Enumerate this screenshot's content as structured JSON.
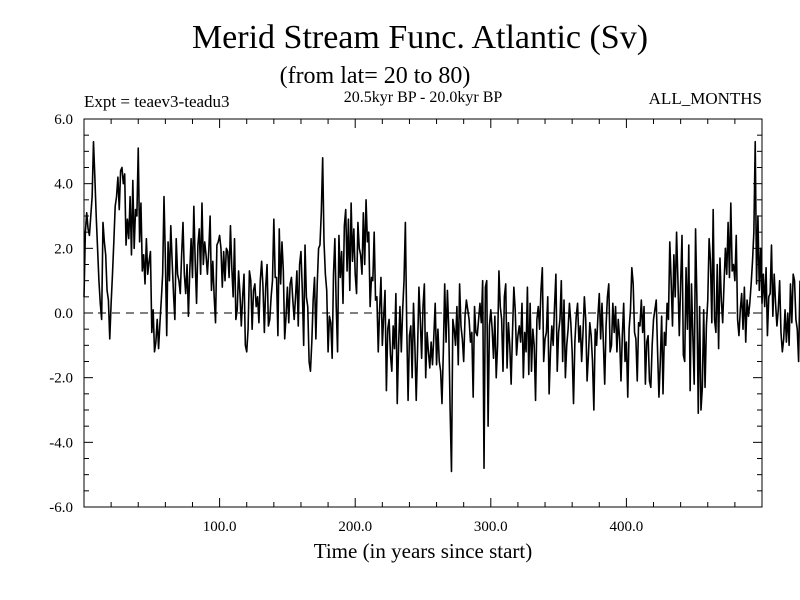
{
  "chart_data": {
    "type": "line",
    "title": "Merid Stream Func. Atlantic (Sv)",
    "subtitle": "(from lat= 20 to 80)",
    "experiment_label": "Expt = teaev3-teadu3",
    "period_label": "20.5kyr BP - 20.0kyr BP",
    "months_label": "ALL_MONTHS",
    "xlabel": "Time (in years since start)",
    "ylabel": "",
    "xlim": [
      0,
      500
    ],
    "ylim": [
      -6.0,
      6.0
    ],
    "x_ticks": [
      {
        "value": 100,
        "label": "100.0"
      },
      {
        "value": 200,
        "label": "200.0"
      },
      {
        "value": 300,
        "label": "300.0"
      },
      {
        "value": 400,
        "label": "400.0"
      }
    ],
    "y_ticks": [
      {
        "value": 6,
        "label": "6.0"
      },
      {
        "value": 4,
        "label": "4.0"
      },
      {
        "value": 2,
        "label": "2.0"
      },
      {
        "value": 0,
        "label": "0.0"
      },
      {
        "value": -2,
        "label": "-2.0"
      },
      {
        "value": -4,
        "label": "-4.0"
      },
      {
        "value": -6,
        "label": "-6.0"
      }
    ],
    "zero_line": {
      "value": 0.0,
      "style": "dashed"
    },
    "series": [
      {
        "name": "Merid Stream Func. Atlantic",
        "x_start": 0,
        "x_step": 1,
        "values": [
          0.5,
          2.5,
          3.1,
          2.6,
          2.4,
          3.0,
          3.6,
          5.3,
          4.2,
          3.0,
          2.0,
          1.0,
          0.3,
          -0.2,
          2.8,
          2.2,
          1.8,
          0.7,
          0.4,
          -0.8,
          0.3,
          1.2,
          2.2,
          3.3,
          3.6,
          4.2,
          3.2,
          4.4,
          4.5,
          4.0,
          4.3,
          2.1,
          2.9,
          2.3,
          3.6,
          1.8,
          4.1,
          2.0,
          3.2,
          3.0,
          5.1,
          2.2,
          3.4,
          1.3,
          1.8,
          0.9,
          2.3,
          1.2,
          1.6,
          1.9,
          -0.6,
          0.1,
          -1.2,
          -0.9,
          -0.2,
          -1.1,
          -0.3,
          0.4,
          1.2,
          3.6,
          1.7,
          -0.7,
          2.2,
          1.0,
          2.7,
          1.6,
          0.6,
          -0.2,
          2.3,
          1.2,
          1.0,
          0.6,
          1.8,
          2.8,
          1.2,
          0.6,
          1.5,
          -0.1,
          1.3,
          2.3,
          1.1,
          3.3,
          1.6,
          0.3,
          2.1,
          2.6,
          1.2,
          3.4,
          1.5,
          2.2,
          1.8,
          1.2,
          1.9,
          3.0,
          0.7,
          1.6,
          0.5,
          -0.3,
          2.1,
          2.2,
          2.4,
          2.0,
          0.8,
          1.9,
          1.0,
          2.0,
          1.9,
          1.1,
          2.7,
          1.4,
          0.5,
          2.3,
          -0.2,
          0.1,
          1.3,
          0.6,
          -0.4,
          0.5,
          1.2,
          -1.0,
          -1.2,
          -0.5,
          1.3,
          1.0,
          -0.5,
          0.7,
          0.9,
          0.2,
          0.5,
          -0.3,
          1.0,
          1.6,
          0.8,
          -0.6,
          0.8,
          1.5,
          -0.4,
          -0.2,
          0.5,
          1.0,
          2.9,
          1.1,
          1.1,
          -0.7,
          2.6,
          0.9,
          2.2,
          1.3,
          -0.8,
          -0.1,
          0.8,
          -0.3,
          0.9,
          1.1,
          0.4,
          -0.2,
          0.5,
          1.3,
          -0.4,
          1.5,
          1.9,
          0.7,
          -1.0,
          2.1,
          0.5,
          0.2,
          -1.5,
          -1.8,
          -0.9,
          0.4,
          1.1,
          -0.8,
          0.9,
          2.0,
          2.1,
          3.1,
          4.8,
          2.2,
          1.2,
          0.7,
          -1.2,
          -0.1,
          -0.3,
          -1.4,
          1.2,
          2.3,
          0.2,
          -1.2,
          2.4,
          1.1,
          1.9,
          0.3,
          2.7,
          3.2,
          1.3,
          2.9,
          0.7,
          3.4,
          1.6,
          2.6,
          1.2,
          0.6,
          2.8,
          2.0,
          1.8,
          1.2,
          3.1,
          1.5,
          3.5,
          2.2,
          2.5,
          0.2,
          1.1,
          1.0,
          2.5,
          0.4,
          0.5,
          -1.2,
          0.1,
          1.1,
          -1.0,
          -0.1,
          0.7,
          -2.4,
          -0.5,
          -0.2,
          -1.3,
          -1.8,
          -0.4,
          -1.1,
          0.6,
          -2.8,
          -1.0,
          0.2,
          -1.2,
          0.1,
          1.0,
          2.8,
          -0.4,
          -2.7,
          -0.7,
          -0.4,
          -2.0,
          0.3,
          -1.0,
          -2.7,
          -1.1,
          0.8,
          -0.2,
          -1.4,
          0.2,
          0.9,
          -2.0,
          -0.6,
          -1.2,
          -1.7,
          -0.9,
          -1.6,
          -0.7,
          0.3,
          -1.6,
          -0.5,
          -1.5,
          -1.8,
          -2.8,
          -1.2,
          0.9,
          -0.9,
          0.7,
          -0.5,
          -3.0,
          -4.9,
          -0.2,
          -0.5,
          -1.0,
          0.2,
          -1.6,
          0.9,
          -0.4,
          -0.8,
          -1.5,
          -0.1,
          0.4,
          0.1,
          -0.2,
          -0.9,
          -0.6,
          -2.6,
          0.2,
          -0.6,
          -0.7,
          -0.2,
          0.3,
          -0.3,
          1.0,
          -4.8,
          0.8,
          1.0,
          -3.5,
          -0.4,
          0.1,
          -0.5,
          -1.4,
          -0.1,
          -2.0,
          -1.0,
          1.3,
          0.2,
          -0.2,
          -1.8,
          0.5,
          0.9,
          -1.7,
          -0.3,
          -1.0,
          -2.2,
          -0.6,
          0.8,
          0.1,
          -1.3,
          -0.7,
          -0.4,
          -0.9,
          0.3,
          -2.0,
          -0.6,
          -1.2,
          0.8,
          -1.9,
          0.3,
          -1.8,
          -0.5,
          -1.0,
          -2.7,
          -0.2,
          0.2,
          -0.5,
          0.7,
          1.4,
          -1.5,
          -0.8,
          -0.6,
          0.5,
          -2.5,
          -1.2,
          -0.4,
          -1.0,
          0.2,
          1.2,
          -1.8,
          -0.6,
          -0.2,
          1.0,
          -1.5,
          0.4,
          -2.0,
          -1.0,
          -0.5,
          0.3,
          -0.3,
          -1.2,
          -2.8,
          -0.9,
          -0.1,
          0.3,
          -0.9,
          -0.4,
          -1.5,
          -0.6,
          0.5,
          -0.2,
          -2.1,
          -1.3,
          -0.3,
          -0.7,
          -1.5,
          -3.0,
          -0.5,
          -1.0,
          -0.1,
          0.6,
          -0.8,
          0.3,
          -0.9,
          -2.2,
          -0.4,
          0.5,
          0.9,
          -1.2,
          -1.0,
          0.3,
          -0.6,
          0.2,
          -1.2,
          -0.2,
          -0.8,
          -2.1,
          -0.7,
          0.3,
          -1.5,
          -0.9,
          -2.6,
          -0.5,
          0.1,
          1.4,
          0.9,
          -0.6,
          -0.8,
          -2.1,
          -0.3,
          -0.4,
          0.4,
          -0.6,
          0.2,
          -2.2,
          -0.9,
          -0.7,
          -2.1,
          -2.3,
          -1.0,
          -0.2,
          0.1,
          0.4,
          -1.2,
          -2.6,
          -1.5,
          -0.1,
          -2.5,
          -0.6,
          -1.0,
          0.3,
          -0.2,
          2.2,
          1.0,
          -0.4,
          1.8,
          0.5,
          2.5,
          1.0,
          -0.7,
          0.9,
          2.4,
          -1.3,
          -1.5,
          1.4,
          -0.5,
          2.1,
          -2.4,
          0.9,
          -0.7,
          -2.2,
          2.6,
          0.4,
          -3.1,
          0.2,
          -3.0,
          -2.3,
          0.1,
          -2.3,
          -0.4,
          0.4,
          2.3,
          1.6,
          -0.3,
          3.2,
          -0.2,
          -0.6,
          1.5,
          -1.1,
          1.7,
          0.4,
          -0.3,
          0.9,
          2.0,
          1.2,
          2.8,
          1.1,
          3.4,
          1.3,
          1.5,
          1.0,
          2.4,
          -0.2,
          -0.7,
          0.1,
          0.6,
          -0.5,
          0.8,
          -0.9,
          0.4,
          -0.1,
          0.3,
          0.9,
          1.6,
          2.5,
          5.3,
          0.9,
          3.0,
          0.7,
          2.0,
          0.3,
          1.2,
          0.2,
          1.4,
          -0.7,
          0.5,
          0.6,
          2.1,
          -0.1,
          1.2,
          0.3,
          -0.4,
          0.1,
          1.0,
          -0.6,
          -1.2,
          -0.8,
          0.1,
          -0.9,
          0.0,
          -1.0,
          0.9,
          -0.3,
          1.2,
          1.0,
          -0.2,
          -0.5,
          -1.5,
          1.0
        ]
      }
    ]
  }
}
